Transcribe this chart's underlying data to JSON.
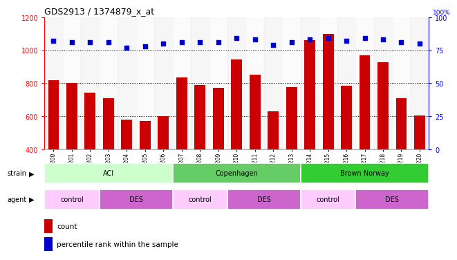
{
  "title": "GDS2913 / 1374879_x_at",
  "samples": [
    "GSM92200",
    "GSM92201",
    "GSM92202",
    "GSM92203",
    "GSM92204",
    "GSM92205",
    "GSM92206",
    "GSM92207",
    "GSM92208",
    "GSM92209",
    "GSM92210",
    "GSM92211",
    "GSM92212",
    "GSM92213",
    "GSM92214",
    "GSM92215",
    "GSM92216",
    "GSM92217",
    "GSM92218",
    "GSM92219",
    "GSM92220"
  ],
  "counts": [
    820,
    800,
    745,
    710,
    578,
    572,
    600,
    835,
    787,
    772,
    945,
    852,
    630,
    778,
    1060,
    1100,
    785,
    968,
    925,
    710,
    607
  ],
  "percentiles": [
    82,
    81,
    81,
    81,
    77,
    78,
    80,
    81,
    81,
    81,
    84,
    83,
    79,
    81,
    83,
    84,
    82,
    84,
    83,
    81,
    80
  ],
  "bar_color": "#cc0000",
  "dot_color": "#0000cc",
  "ylim_left": [
    400,
    1200
  ],
  "ylim_right": [
    0,
    100
  ],
  "yticks_left": [
    400,
    600,
    800,
    1000,
    1200
  ],
  "yticks_right": [
    0,
    25,
    50,
    75,
    100
  ],
  "grid_values": [
    600,
    800,
    1000
  ],
  "strain_groups": [
    {
      "label": "ACI",
      "start": 0,
      "end": 7,
      "color": "#ccffcc"
    },
    {
      "label": "Copenhagen",
      "start": 7,
      "end": 14,
      "color": "#66cc66"
    },
    {
      "label": "Brown Norway",
      "start": 14,
      "end": 21,
      "color": "#33cc33"
    }
  ],
  "agent_groups": [
    {
      "label": "control",
      "start": 0,
      "end": 3,
      "color": "#ffccff"
    },
    {
      "label": "DES",
      "start": 3,
      "end": 7,
      "color": "#cc66cc"
    },
    {
      "label": "control",
      "start": 7,
      "end": 10,
      "color": "#ffccff"
    },
    {
      "label": "DES",
      "start": 10,
      "end": 14,
      "color": "#cc66cc"
    },
    {
      "label": "control",
      "start": 14,
      "end": 17,
      "color": "#ffccff"
    },
    {
      "label": "DES",
      "start": 17,
      "end": 21,
      "color": "#cc66cc"
    }
  ],
  "strain_colors": {
    "ACI": "#ccffcc",
    "Copenhagen": "#66cc66",
    "Brown Norway": "#33cc33"
  },
  "agent_colors": {
    "control": "#ffccff",
    "DES": "#cc66cc"
  }
}
